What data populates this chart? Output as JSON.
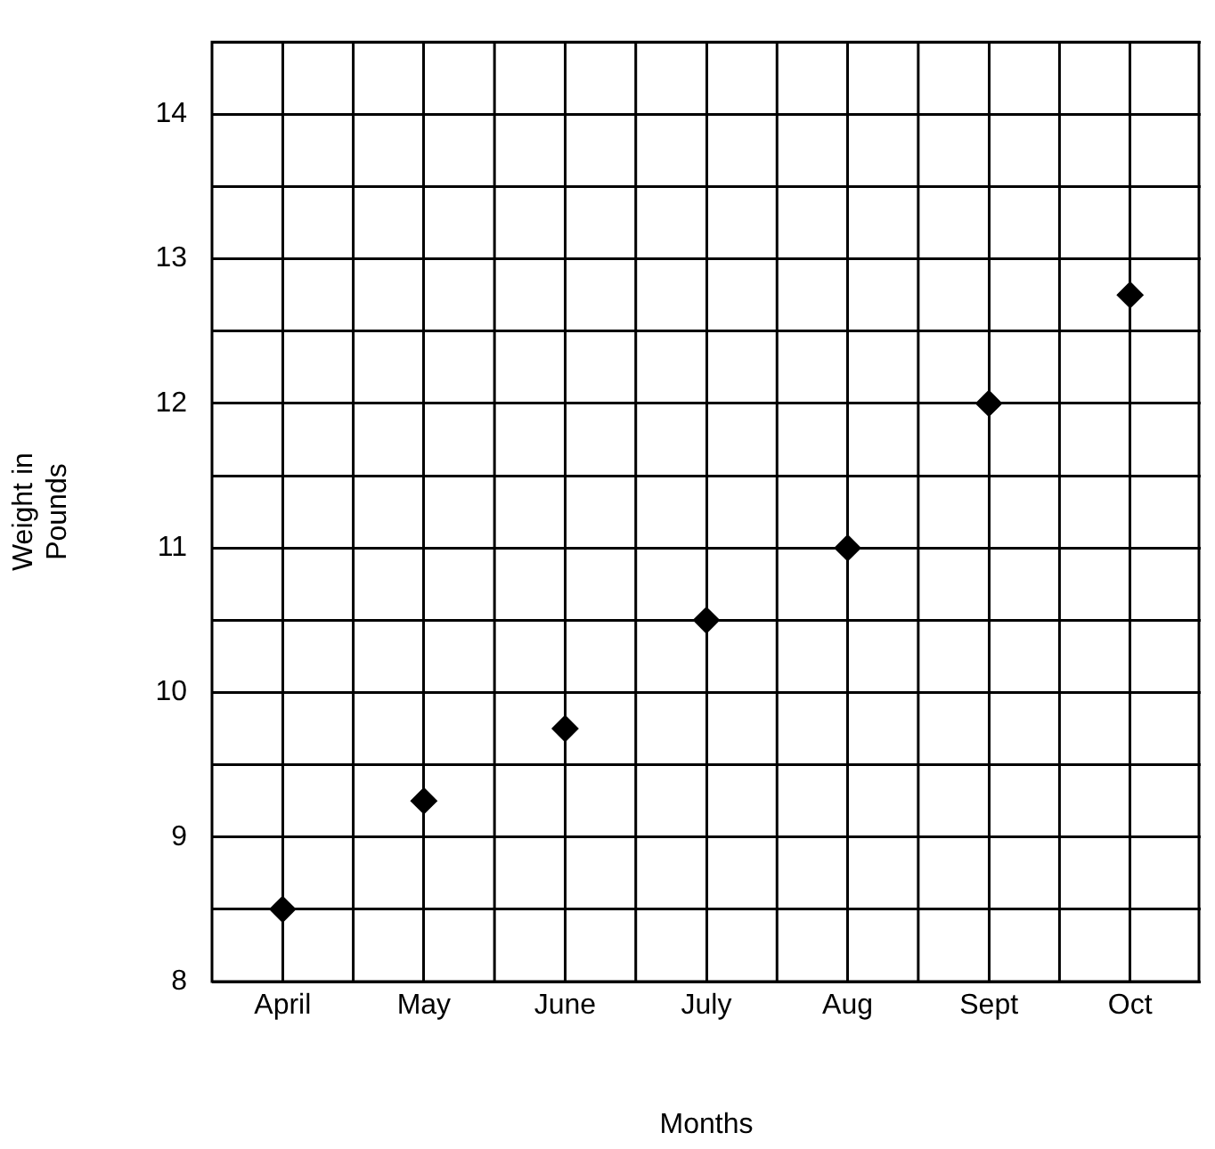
{
  "chart_data": {
    "type": "scatter",
    "xlabel": "Months",
    "ylabel": "Weight in Pounds",
    "categories": [
      "April",
      "May",
      "June",
      "July",
      "Aug",
      "Sept",
      "Oct"
    ],
    "values": [
      8.5,
      9.25,
      9.75,
      10.5,
      11,
      12,
      12.75
    ],
    "color": "#000000",
    "marker": "diamond",
    "grid": true,
    "legend": false,
    "ylim": [
      8,
      14.5
    ],
    "yticks": [
      8,
      {
        "value": 8.5,
        "label": null
      },
      9,
      {
        "value": 9.5,
        "label": null
      },
      10,
      {
        "value": 10.5,
        "label": null
      },
      11,
      {
        "value": 11.5,
        "label": null
      },
      12,
      {
        "value": 12.5,
        "label": null
      },
      13,
      {
        "value": 13.5,
        "label": null
      },
      14,
      {
        "value": 14.5,
        "label": null
      }
    ]
  }
}
